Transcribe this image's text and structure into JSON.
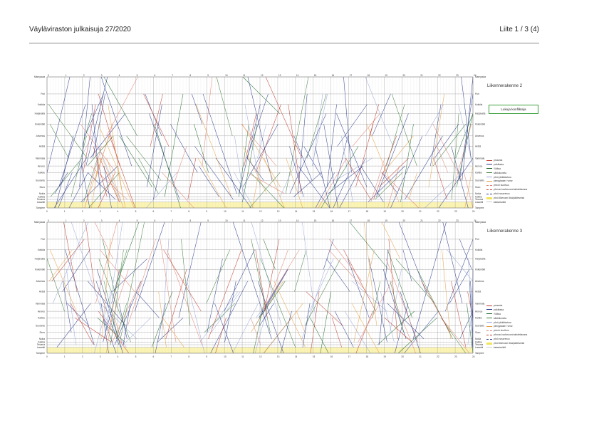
{
  "header": {
    "title": "Väyläviraston julkaisuja 27/2020",
    "page": "Liite 1 / 3 (4)"
  },
  "annotation_box": "Lukuja konflikteja",
  "stations": [
    "Marnyauta",
    "Pori",
    "Kokkila",
    "Harjavalta",
    "Kokemäki",
    "Ahvenus",
    "Aetsä",
    "Vammala",
    "Hervoo",
    "Karkku",
    "Suoranto",
    "Siuro",
    "Nokia",
    "Kaikka",
    "Tesoma",
    "Lasantti",
    "Tampere"
  ],
  "hours": [
    "0",
    "1",
    "2",
    "3",
    "4",
    "5",
    "6",
    "7",
    "8",
    "9",
    "10",
    "11",
    "12",
    "13",
    "14",
    "15",
    "16",
    "17",
    "18",
    "19",
    "20",
    "21",
    "22",
    "23",
    "24"
  ],
  "panels": [
    {
      "title": "Liikennerakenne 2"
    },
    {
      "title": "Liikennerakenne 3"
    }
  ],
  "legend": [
    {
      "label": "ymaanta",
      "color": "#c0392b",
      "style": "solid"
    },
    {
      "label": "poikittaisa",
      "color": "#2a3a8a",
      "style": "solid"
    },
    {
      "label": "Yötäva",
      "color": "#1f6b2e",
      "style": "solid"
    },
    {
      "label": "sähkökoneta",
      "color": "#3b7c3b",
      "style": "solid"
    },
    {
      "label": "yövö pikkikkaivoa",
      "color": "#9aa7d6",
      "style": "solid"
    },
    {
      "label": "pienyykaste / virror",
      "color": "#e6a044",
      "style": "solid"
    },
    {
      "label": "ymro/r kuolivuu",
      "color": "#e08070",
      "style": "dash"
    },
    {
      "label": "yövnuo kuolivuuon/vaihdettavana",
      "color": "#c0392b",
      "style": "dash"
    },
    {
      "label": "yövö nosorenuo",
      "color": "#2a3a8a",
      "style": "dash"
    },
    {
      "label": "yövö liikenunn/ lisä/pääteveisä",
      "color": "#f2e45a",
      "style": "band"
    },
    {
      "label": "kaksoisväkli",
      "color": "#cccccc",
      "style": "solid"
    }
  ]
}
